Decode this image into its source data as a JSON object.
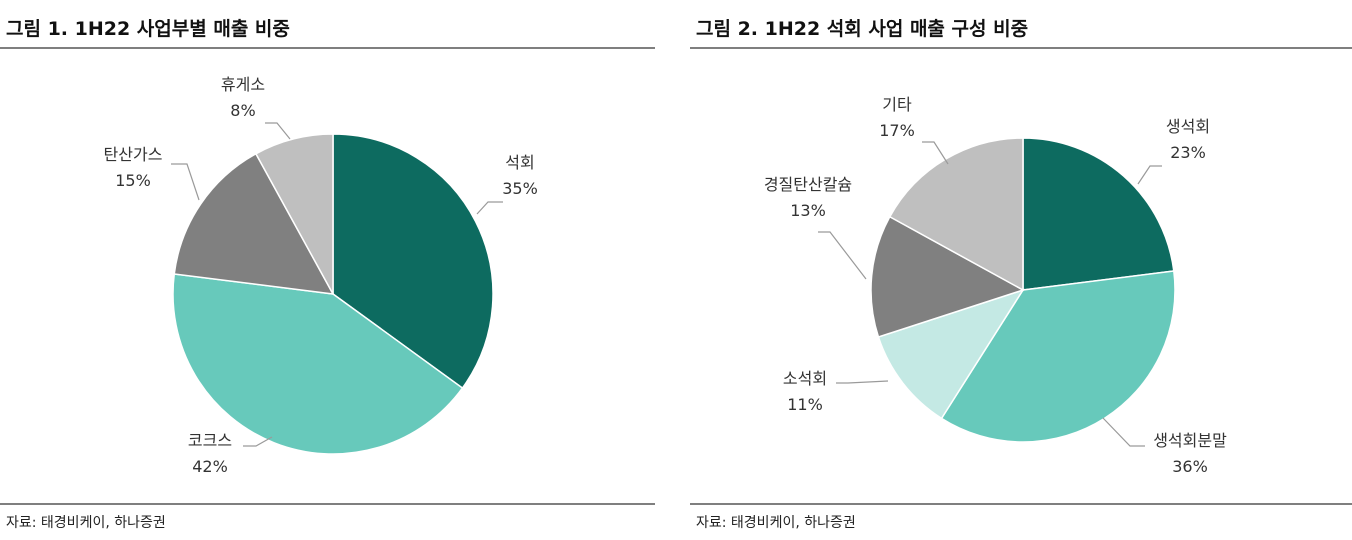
{
  "charts": [
    {
      "title": "그림 1. 1H22 사업부별 매출 비중",
      "source": "자료: 태경비케이, 하나증권"
    },
    {
      "title": "그림 2. 1H22 석회 사업 매출 구성 비중",
      "source": "자료: 태경비케이, 하나증권"
    }
  ],
  "chart_data": [
    {
      "type": "pie",
      "title": "그림 1. 1H22 사업부별 매출 비중",
      "slices": [
        {
          "label": "석회",
          "value": 35,
          "display": "35%",
          "color": "#0d6b60"
        },
        {
          "label": "코크스",
          "value": 42,
          "display": "42%",
          "color": "#67c9bb"
        },
        {
          "label": "탄산가스",
          "value": 15,
          "display": "15%",
          "color": "#808080"
        },
        {
          "label": "휴게소",
          "value": 8,
          "display": "8%",
          "color": "#bfbfbf"
        }
      ]
    },
    {
      "type": "pie",
      "title": "그림 2. 1H22 석회 사업 매출 구성 비중",
      "slices": [
        {
          "label": "생석회",
          "value": 23,
          "display": "23%",
          "color": "#0d6b60"
        },
        {
          "label": "생석회분말",
          "value": 36,
          "display": "36%",
          "color": "#67c9bb"
        },
        {
          "label": "소석회",
          "value": 11,
          "display": "11%",
          "color": "#c4e9e4"
        },
        {
          "label": "경질탄산칼슘",
          "value": 13,
          "display": "13%",
          "color": "#808080"
        },
        {
          "label": "기타",
          "value": 17,
          "display": "17%",
          "color": "#bfbfbf"
        }
      ]
    }
  ]
}
